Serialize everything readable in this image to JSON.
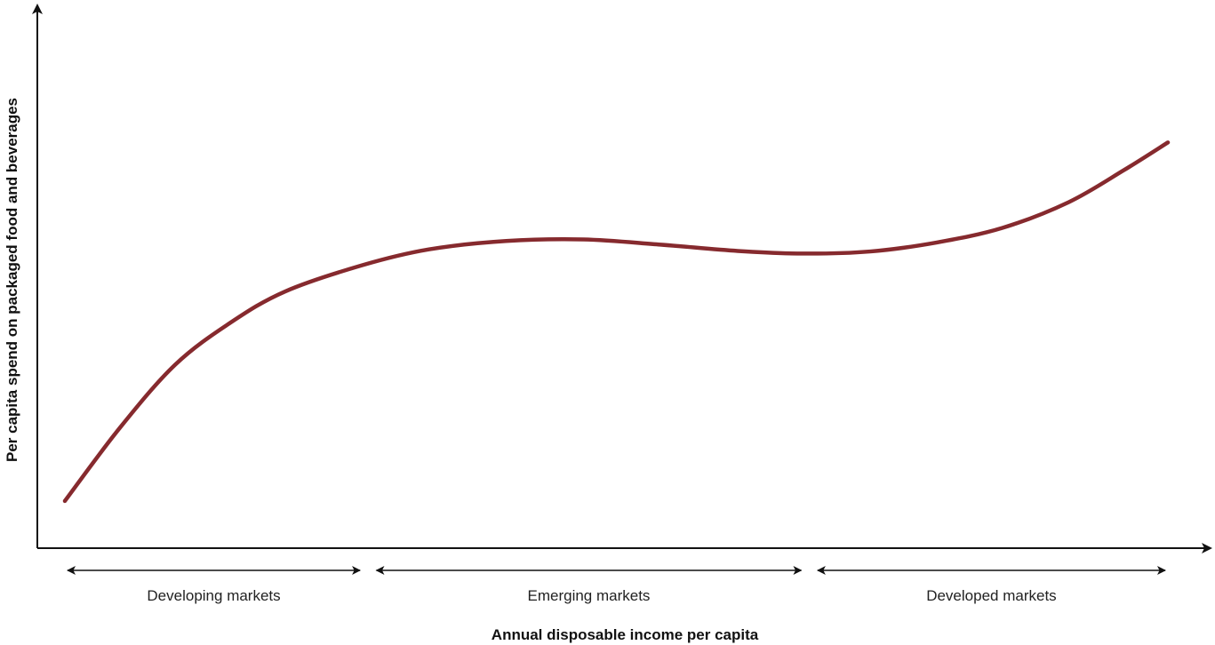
{
  "chart_data": {
    "type": "line",
    "title": "",
    "xlabel": "Annual disposable income per capita",
    "ylabel": "Per capita spend on packaged food and beverages",
    "x_ticks": "none",
    "y_ticks": "none",
    "grid": false,
    "legend": "none",
    "series": [
      {
        "color": "#862a2e",
        "points": [
          [
            0.0,
            0.09
          ],
          [
            0.05,
            0.23
          ],
          [
            0.1,
            0.35
          ],
          [
            0.15,
            0.43
          ],
          [
            0.2,
            0.49
          ],
          [
            0.27,
            0.54
          ],
          [
            0.33,
            0.57
          ],
          [
            0.4,
            0.586
          ],
          [
            0.47,
            0.589
          ],
          [
            0.54,
            0.579
          ],
          [
            0.61,
            0.567
          ],
          [
            0.67,
            0.562
          ],
          [
            0.73,
            0.566
          ],
          [
            0.79,
            0.583
          ],
          [
            0.85,
            0.611
          ],
          [
            0.91,
            0.66
          ],
          [
            0.96,
            0.721
          ],
          [
            1.0,
            0.774
          ]
        ]
      }
    ],
    "segments": [
      {
        "label": "Developing markets",
        "from": 0.0,
        "to": 0.27
      },
      {
        "label": "Emerging markets",
        "from": 0.28,
        "to": 0.67
      },
      {
        "label": "Developed markets",
        "from": 0.68,
        "to": 1.0
      }
    ]
  }
}
